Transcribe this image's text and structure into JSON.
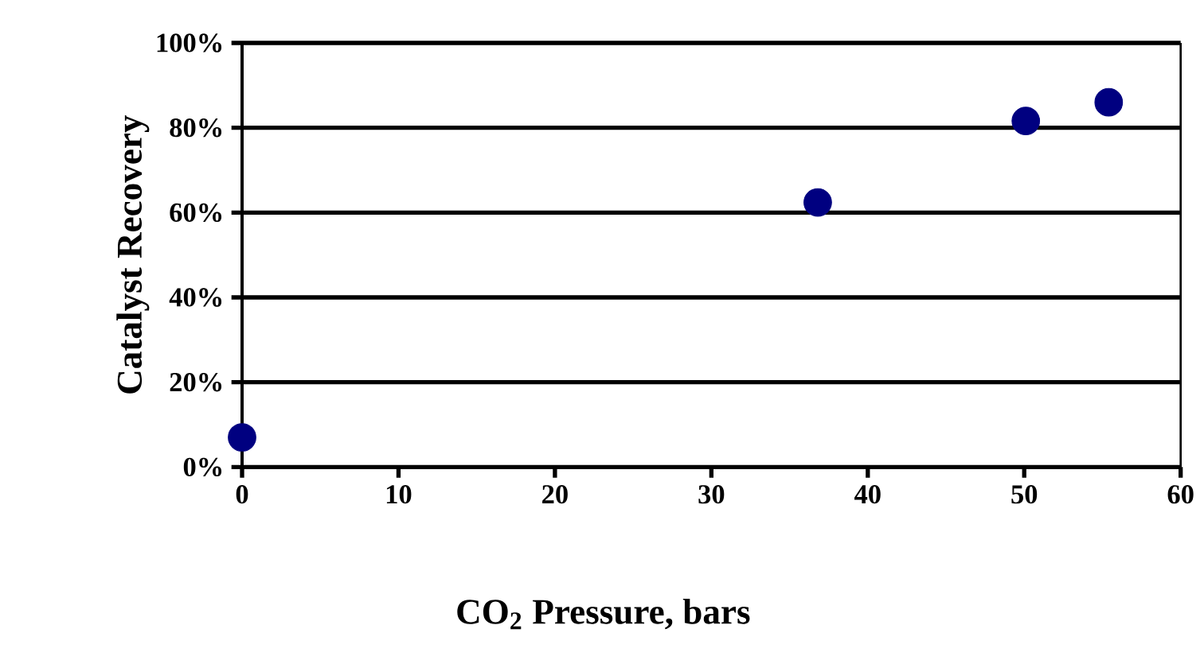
{
  "chart_data": {
    "type": "scatter",
    "xlabel": "CO$_{2}$ Pressure, bars",
    "ylabel": "Catalyst Recovery",
    "x": [
      0,
      36.8,
      50.1,
      55.4
    ],
    "values": [
      7,
      62.4,
      81.6,
      86
    ],
    "color": "#000080",
    "marker": "circle",
    "xlim": [
      0,
      60
    ],
    "xticks": [
      0,
      10,
      20,
      30,
      40,
      50,
      60
    ],
    "ylim": [
      0,
      100
    ],
    "yticks": [
      {
        "value": 0,
        "label": "0%"
      },
      {
        "value": 20,
        "label": "20%"
      },
      {
        "value": 40,
        "label": "40%"
      },
      {
        "value": 60,
        "label": "60%"
      },
      {
        "value": 80,
        "label": "80%"
      },
      {
        "value": 100,
        "label": "100%"
      }
    ],
    "grid": "y"
  }
}
